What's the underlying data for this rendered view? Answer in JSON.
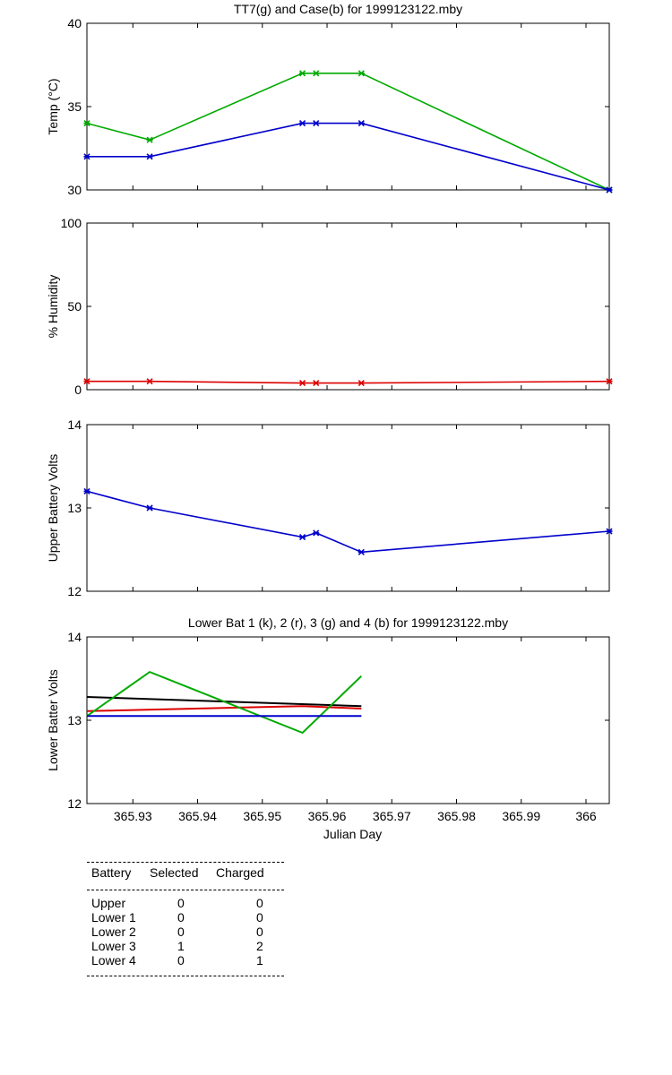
{
  "chart_data": [
    {
      "type": "line",
      "title": "TT7(g) and Case(b) for 1999123122.mby",
      "xlabel": "",
      "ylabel": "Temp  (°C)",
      "ylim": [
        30,
        40
      ],
      "xlim": [
        365.9229,
        366.0036
      ],
      "y_ticks": [
        "30",
        "35",
        "40"
      ],
      "series": [
        {
          "color": "#00aa00",
          "x": [
            365.9229,
            365.9326,
            365.9562,
            365.9583,
            365.9653,
            366.0036
          ],
          "values": [
            34,
            33,
            37,
            37,
            37,
            30
          ]
        },
        {
          "color": "#0000cc",
          "x": [
            365.9229,
            365.9326,
            365.9562,
            365.9583,
            365.9653,
            366.0036
          ],
          "values": [
            32,
            32,
            34,
            34,
            34,
            30
          ]
        }
      ]
    },
    {
      "type": "line",
      "title": "",
      "xlabel": "",
      "ylabel": "% Humidity",
      "ylim": [
        0,
        100
      ],
      "xlim": [
        365.9229,
        366.0036
      ],
      "y_ticks": [
        "0",
        "50",
        "100"
      ],
      "series": [
        {
          "color": "#dd0000",
          "x": [
            365.9229,
            365.9326,
            365.9562,
            365.9583,
            365.9653,
            366.0036
          ],
          "values": [
            5,
            5,
            4,
            4,
            4,
            5
          ]
        }
      ]
    },
    {
      "type": "line",
      "title": "",
      "xlabel": "",
      "ylabel": "Upper Battery Volts",
      "ylim": [
        12,
        14
      ],
      "xlim": [
        365.9229,
        366.0036
      ],
      "y_ticks": [
        "12",
        "13",
        "14"
      ],
      "series": [
        {
          "color": "#0000cc",
          "x": [
            365.9229,
            365.9326,
            365.9562,
            365.9583,
            365.9653,
            366.0036
          ],
          "values": [
            13.2,
            13.0,
            12.65,
            12.7,
            12.47,
            12.72
          ]
        }
      ]
    },
    {
      "type": "line",
      "title": "Lower Bat 1 (k), 2 (r), 3 (g) and 4 (b) for 1999123122.mby",
      "xlabel": "Julian Day",
      "ylabel": "Lower Batter Volts",
      "ylim": [
        12,
        14
      ],
      "xlim": [
        365.9229,
        366.0036
      ],
      "y_ticks": [
        "12",
        "13",
        "14"
      ],
      "x_ticks": [
        "365.93",
        "365.94",
        "365.95",
        "365.96",
        "365.97",
        "365.98",
        "365.99",
        "366"
      ],
      "x_tick_values": [
        365.93,
        365.94,
        365.95,
        365.96,
        365.97,
        365.98,
        365.99,
        366.0
      ],
      "series": [
        {
          "color": "#000000",
          "x": [
            365.9229,
            365.9653
          ],
          "values": [
            13.28,
            13.17
          ]
        },
        {
          "color": "#dd0000",
          "x": [
            365.9229,
            365.9562,
            365.9653
          ],
          "values": [
            13.11,
            13.17,
            13.14
          ]
        },
        {
          "color": "#00aa00",
          "x": [
            365.9229,
            365.9326,
            365.9562,
            365.9653
          ],
          "values": [
            13.05,
            13.58,
            12.85,
            13.53
          ]
        },
        {
          "color": "#0000cc",
          "x": [
            365.9229,
            365.9653
          ],
          "values": [
            13.05,
            13.05
          ]
        }
      ]
    }
  ],
  "battery_table": {
    "headers": [
      "Battery",
      "Selected",
      "Charged"
    ],
    "rows": [
      {
        "battery": "Upper",
        "selected": "0",
        "charged": "0"
      },
      {
        "battery": "Lower 1",
        "selected": "0",
        "charged": "0"
      },
      {
        "battery": "Lower 2",
        "selected": "0",
        "charged": "0"
      },
      {
        "battery": "Lower 3",
        "selected": "1",
        "charged": "2"
      },
      {
        "battery": "Lower 4",
        "selected": "0",
        "charged": "1"
      }
    ]
  }
}
